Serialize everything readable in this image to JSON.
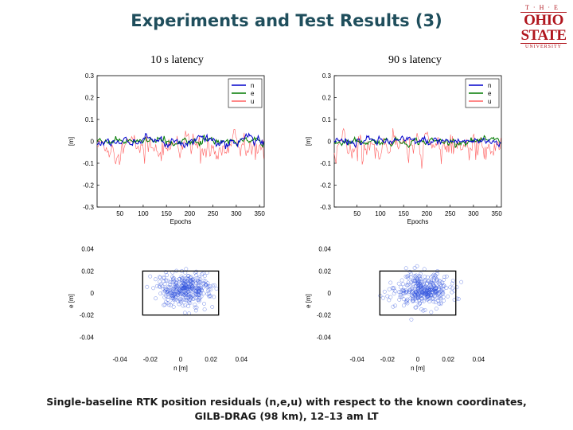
{
  "slide": {
    "title": "Experiments and Test Results (3)",
    "logo_text": {
      "the": "T·H·E",
      "line1": "OHIO",
      "line2": "STATE",
      "line3": "UNIVERSITY"
    },
    "left_label": "10 s latency",
    "right_label": "90 s latency",
    "caption_line1": "Single-baseline RTK position residuals (n,e,u) with respect to the known coordinates,",
    "caption_line2": "GILB-DRAG (98 km), 12–13 am LT"
  },
  "colors": {
    "title": "#1f4e5c",
    "logo": "#b0161e",
    "n": "#0000cc",
    "e": "#007a00",
    "u": "#ff6060",
    "scatter": "#3355dd"
  },
  "chart_data": [
    {
      "type": "line",
      "panel": "left-top",
      "xlabel": "Epochs",
      "ylabel": "[m]",
      "xticks": [
        50,
        100,
        150,
        200,
        250,
        300,
        350
      ],
      "yticks": [
        -0.3,
        -0.2,
        -0.1,
        0,
        0.1,
        0.2,
        0.3
      ],
      "xlim": [
        1,
        360
      ],
      "ylim": [
        -0.3,
        0.3
      ],
      "legend": "top-right",
      "series": [
        {
          "name": "n",
          "mean": 0.0,
          "amp": 0.015
        },
        {
          "name": "e",
          "mean": 0.0,
          "amp": 0.012
        },
        {
          "name": "u",
          "mean": -0.02,
          "amp": 0.04
        }
      ]
    },
    {
      "type": "line",
      "panel": "right-top",
      "xlabel": "Epochs",
      "ylabel": "[m]",
      "xticks": [
        50,
        100,
        150,
        200,
        250,
        300,
        350
      ],
      "yticks": [
        -0.3,
        -0.2,
        -0.1,
        0,
        0.1,
        0.2,
        0.3
      ],
      "xlim": [
        1,
        360
      ],
      "ylim": [
        -0.3,
        0.3
      ],
      "legend": "top-right",
      "series": [
        {
          "name": "n",
          "mean": 0.0,
          "amp": 0.015
        },
        {
          "name": "e",
          "mean": 0.0,
          "amp": 0.012
        },
        {
          "name": "u",
          "mean": -0.02,
          "amp": 0.04
        }
      ]
    },
    {
      "type": "scatter",
      "panel": "left-bottom",
      "xlabel": "n [m]",
      "ylabel": "e [m]",
      "xticks": [
        -0.04,
        -0.02,
        0,
        0.02,
        0.04
      ],
      "yticks": [
        -0.04,
        -0.02,
        0,
        0.02,
        0.04
      ],
      "xlim": [
        -0.055,
        0.055
      ],
      "ylim": [
        -0.055,
        0.055
      ],
      "box": [
        -0.025,
        0.025,
        -0.02,
        0.02
      ],
      "spread": 0.008
    },
    {
      "type": "scatter",
      "panel": "right-bottom",
      "xlabel": "n [m]",
      "ylabel": "e [m]",
      "xticks": [
        -0.04,
        -0.02,
        0,
        0.02,
        0.04
      ],
      "yticks": [
        -0.04,
        -0.02,
        0,
        0.02,
        0.04
      ],
      "xlim": [
        -0.055,
        0.055
      ],
      "ylim": [
        -0.055,
        0.055
      ],
      "box": [
        -0.025,
        0.025,
        -0.02,
        0.02
      ],
      "spread": 0.008
    }
  ]
}
